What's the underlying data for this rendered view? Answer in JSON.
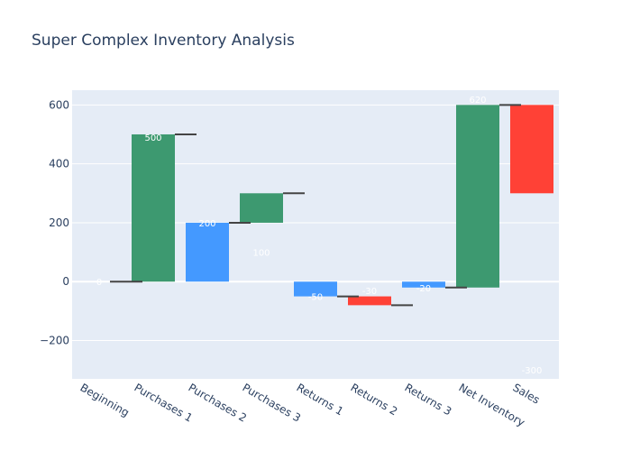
{
  "chart_data": {
    "type": "bar",
    "subtype": "waterfall",
    "title": "Super Complex Inventory Analysis",
    "xlabel": "",
    "ylabel": "",
    "categories": [
      "Beginning",
      "Purchases 1",
      "Purchases 2",
      "Purchases 3",
      "Returns 1",
      "Returns 2",
      "Returns 3",
      "Net Inventory",
      "Sales"
    ],
    "bars": [
      {
        "category": "Beginning",
        "base": 0,
        "top": 0,
        "label": "0",
        "kind": "none"
      },
      {
        "category": "Purchases 1",
        "base": 0,
        "top": 500,
        "label": "500",
        "kind": "green"
      },
      {
        "category": "Purchases 2",
        "base": 0,
        "top": 200,
        "label": "200",
        "kind": "blue"
      },
      {
        "category": "Purchases 3",
        "base": 200,
        "top": 300,
        "label": "100",
        "kind": "green"
      },
      {
        "category": "Returns 1",
        "base": -50,
        "top": 0,
        "label": "-50",
        "kind": "blue"
      },
      {
        "category": "Returns 2",
        "base": -80,
        "top": -50,
        "label": "-30",
        "kind": "red"
      },
      {
        "category": "Returns 3",
        "base": -20,
        "top": 0,
        "label": "-20",
        "kind": "blue"
      },
      {
        "category": "Net Inventory",
        "base": -20,
        "top": 600,
        "label": "620",
        "kind": "green"
      },
      {
        "category": "Sales",
        "base": 300,
        "top": 600,
        "label": "-300",
        "kind": "red"
      }
    ],
    "label_positions": [
      0,
      490,
      200,
      100,
      -50,
      -30,
      -20,
      620,
      -300
    ],
    "connectors": [
      {
        "from": 0,
        "value": 0
      },
      {
        "from": 1,
        "value": 500
      },
      {
        "from": 2,
        "value": 200
      },
      {
        "from": 3,
        "value": 300
      },
      {
        "from": 4,
        "value": -50
      },
      {
        "from": 5,
        "value": -80
      },
      {
        "from": 6,
        "value": -20
      },
      {
        "from": 7,
        "value": 600
      }
    ],
    "ylim": [
      -330,
      650
    ],
    "yticks": [
      -200,
      0,
      200,
      400,
      600
    ],
    "ytick_labels": [
      "−200",
      "0",
      "200",
      "400",
      "600"
    ],
    "grid": true,
    "colors": {
      "green": "#3d9970",
      "blue": "#4499ff",
      "red": "#ff4136",
      "plot_bg": "#e5ecf6",
      "grid": "#ffffff",
      "connector": "#444444",
      "text": "#2a3f5f"
    }
  }
}
